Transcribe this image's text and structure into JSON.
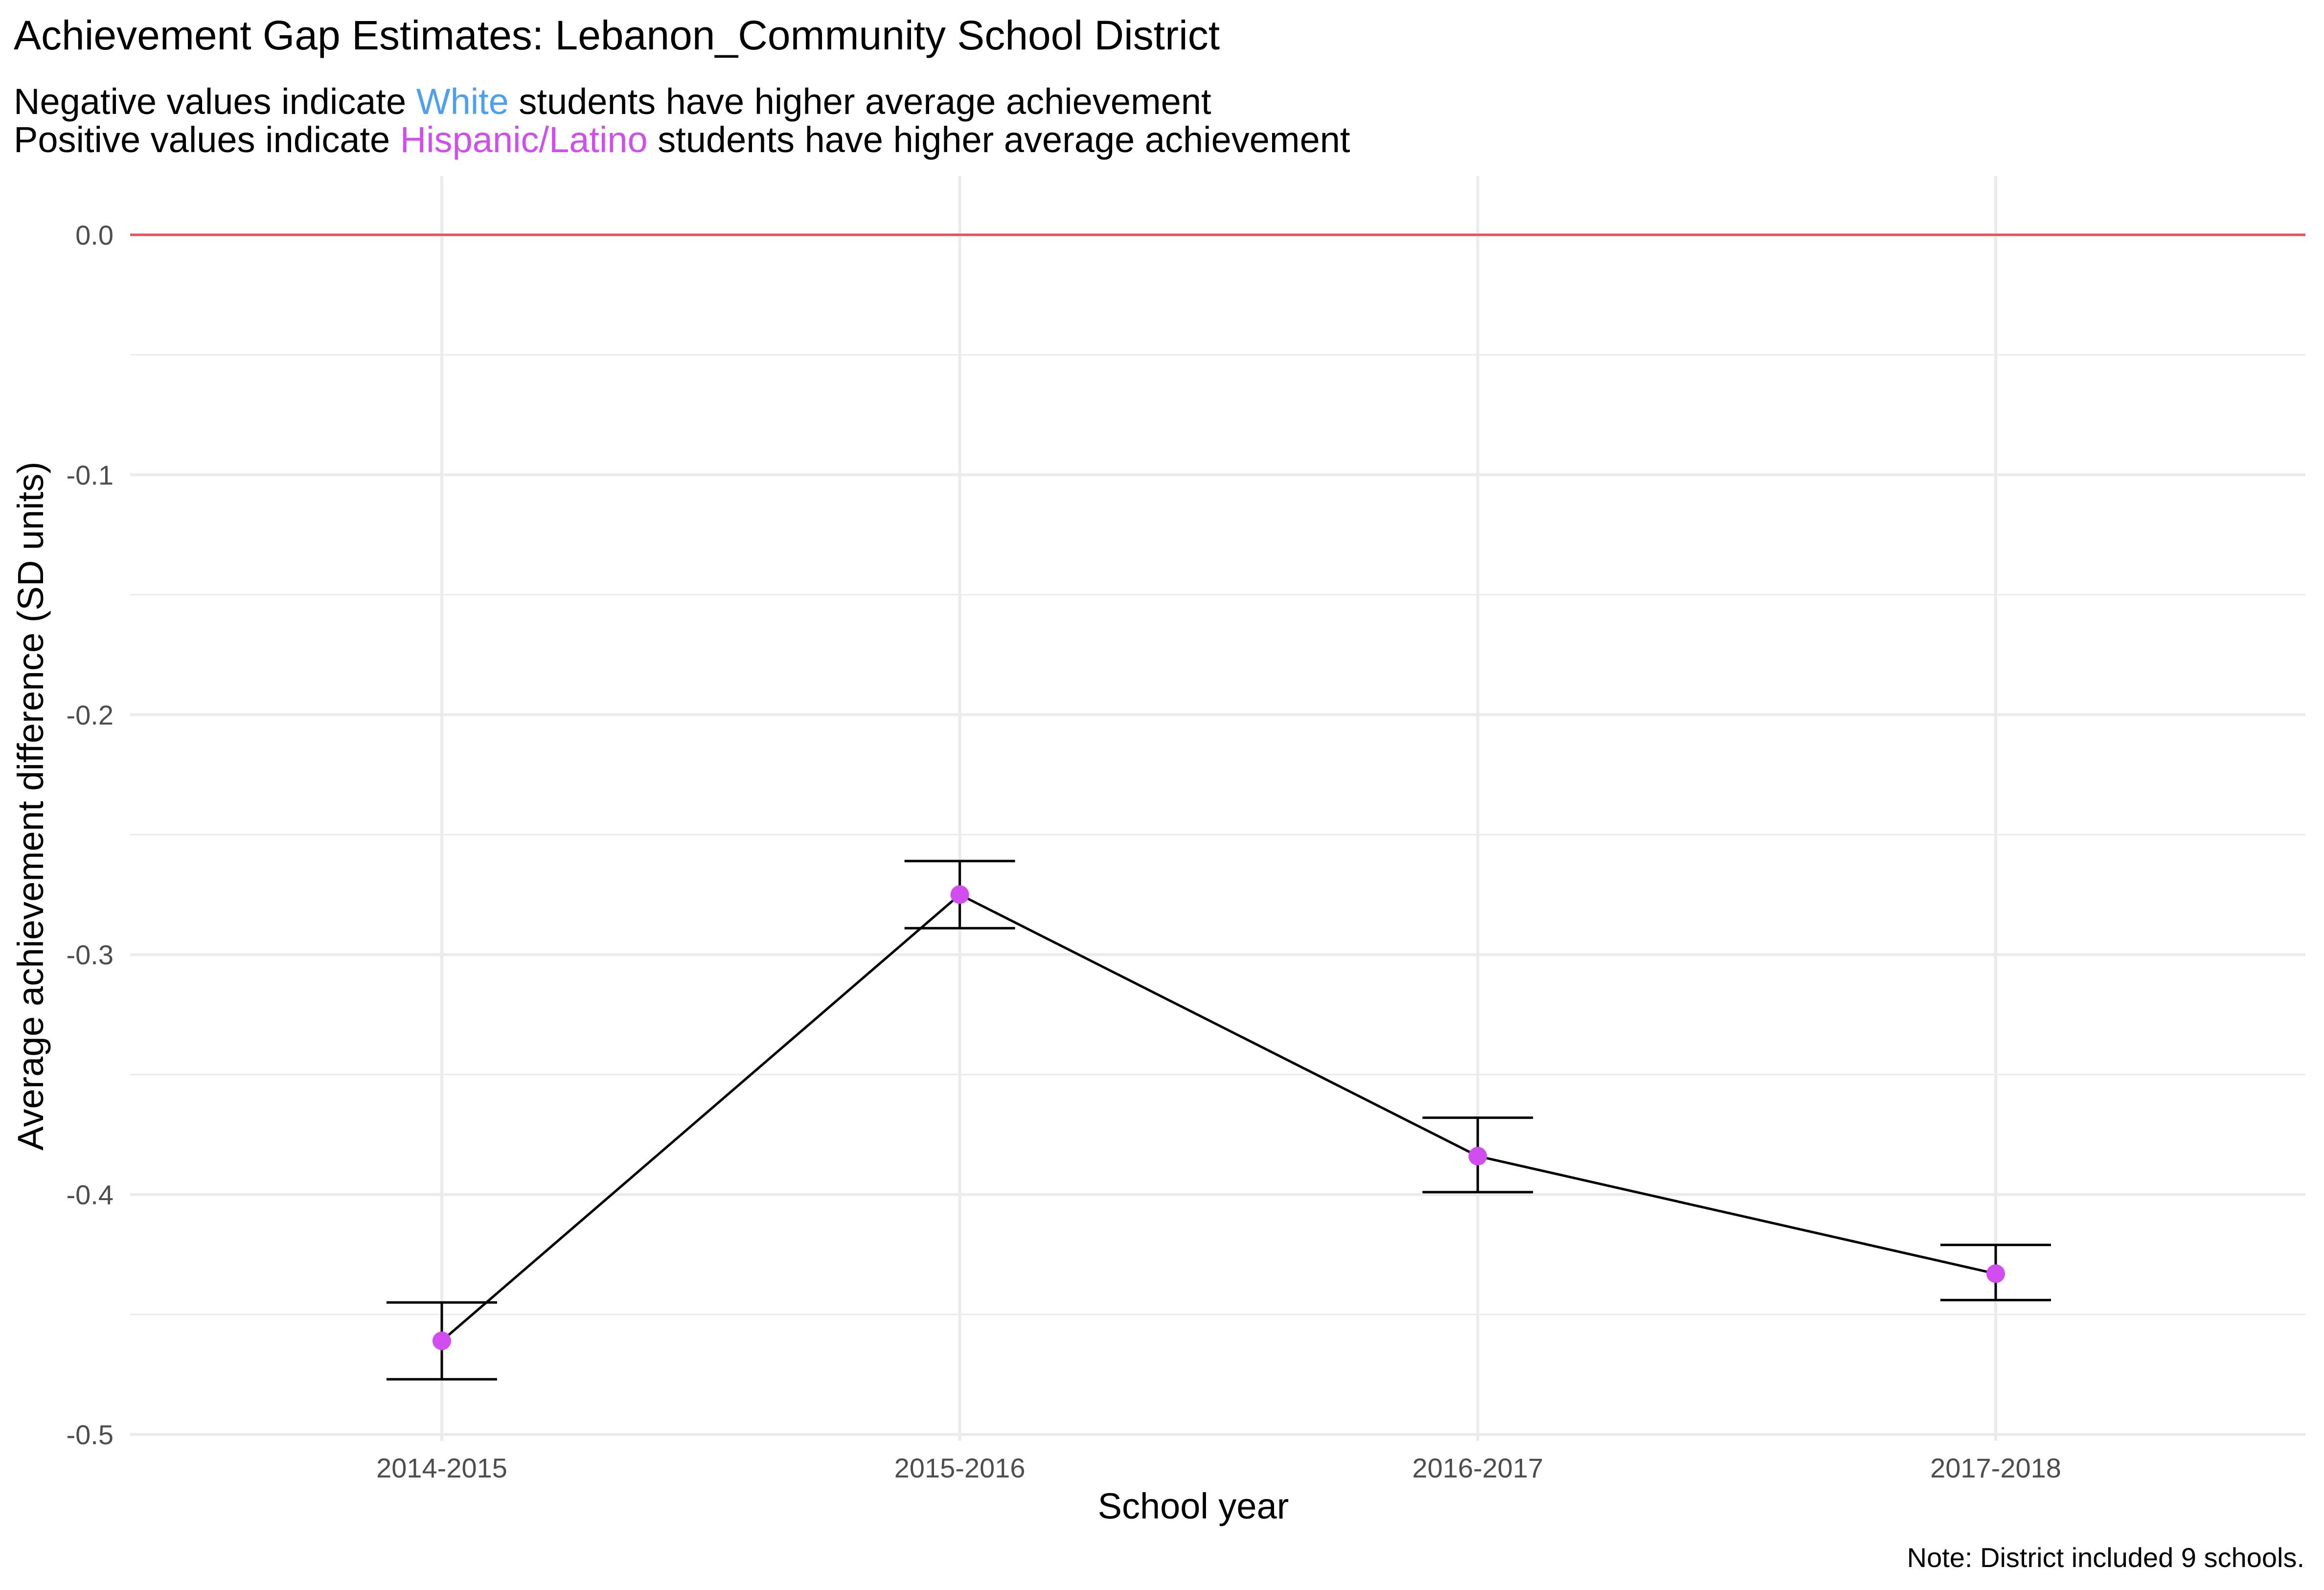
{
  "title": "Achievement Gap Estimates: Lebanon_Community School District",
  "subtitle": {
    "line1_prefix": "Negative values indicate ",
    "line1_group": "White",
    "line1_suffix": " students have higher average achievement",
    "line2_prefix": "Positive values indicate ",
    "line2_group": "Hispanic/Latino",
    "line2_suffix": " students have higher average achievement"
  },
  "caption": "Note: District included 9 schools.",
  "colors": {
    "white_group": "#4c9ff2",
    "hispanic_group": "#d14df0",
    "reference_line": "#e8505b",
    "gridline": "#ebebeb",
    "line": "#000000"
  },
  "chart_data": {
    "type": "line",
    "title": "Achievement Gap Estimates: Lebanon_Community School District",
    "xlabel": "School year",
    "ylabel": "Average achievement difference (SD units)",
    "categories": [
      "2014-2015",
      "2015-2016",
      "2016-2017",
      "2017-2018"
    ],
    "series": [
      {
        "values": [
          -0.461,
          -0.275,
          -0.384,
          -0.433
        ],
        "lower": [
          -0.477,
          -0.289,
          -0.399,
          -0.444
        ],
        "upper": [
          -0.445,
          -0.261,
          -0.368,
          -0.421
        ]
      }
    ],
    "reference_line": 0,
    "ylim": [
      -0.5,
      0.0
    ],
    "yticks": [
      0.0,
      -0.1,
      -0.2,
      -0.3,
      -0.4,
      -0.5
    ],
    "ytick_labels": [
      "0.0",
      "-0.1",
      "-0.2",
      "-0.3",
      "-0.4",
      "-0.5"
    ],
    "grid": true,
    "legend": "none"
  }
}
